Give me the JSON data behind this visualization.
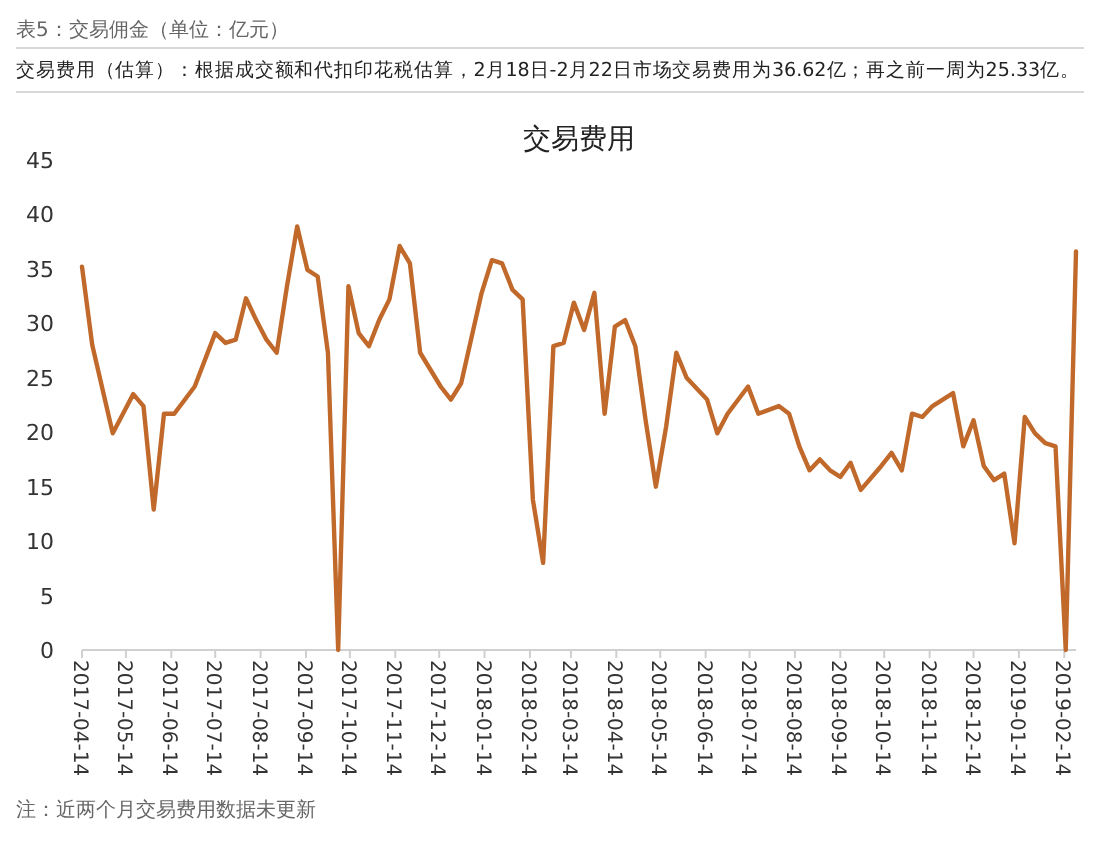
{
  "chart_data": {
    "type": "line",
    "title": "交易费用",
    "annotations": [
      "表5：交易佣金（单位：亿元）",
      "交易费用（估算）：根据成交额和代扣印花税估算，2月18日-2月22日市场交易费用为36.62亿；再之前一周为25.33亿。",
      "注：近两个月交易费用数据未更新"
    ],
    "x": [
      "2017-04-14",
      "2017-04-21",
      "2017-05-05",
      "2017-05-12",
      "2017-05-19",
      "2017-05-26",
      "2017-06-02",
      "2017-06-09",
      "2017-06-16",
      "2017-06-30",
      "2017-07-14",
      "2017-07-21",
      "2017-07-28",
      "2017-08-04",
      "2017-08-11",
      "2017-08-18",
      "2017-08-25",
      "2017-09-01",
      "2017-09-08",
      "2017-09-15",
      "2017-09-22",
      "2017-09-29",
      "2017-10-06",
      "2017-10-13",
      "2017-10-20",
      "2017-10-27",
      "2017-11-03",
      "2017-11-10",
      "2017-11-17",
      "2017-11-24",
      "2017-12-01",
      "2017-12-15",
      "2017-12-22",
      "2017-12-29",
      "2018-01-12",
      "2018-01-19",
      "2018-01-26",
      "2018-02-02",
      "2018-02-09",
      "2018-02-16",
      "2018-02-23",
      "2018-03-02",
      "2018-03-09",
      "2018-03-16",
      "2018-03-23",
      "2018-03-30",
      "2018-04-06",
      "2018-04-13",
      "2018-04-20",
      "2018-04-27",
      "2018-05-04",
      "2018-05-11",
      "2018-05-18",
      "2018-05-25",
      "2018-06-01",
      "2018-06-15",
      "2018-06-22",
      "2018-06-29",
      "2018-07-13",
      "2018-07-20",
      "2018-08-03",
      "2018-08-10",
      "2018-08-17",
      "2018-08-24",
      "2018-08-31",
      "2018-09-07",
      "2018-09-14",
      "2018-09-21",
      "2018-09-28",
      "2018-10-12",
      "2018-10-19",
      "2018-10-26",
      "2018-11-02",
      "2018-11-09",
      "2018-11-16",
      "2018-11-30",
      "2018-12-07",
      "2018-12-14",
      "2018-12-21",
      "2018-12-28",
      "2019-01-04",
      "2019-01-11",
      "2019-01-18",
      "2019-01-25",
      "2019-02-01",
      "2019-02-08",
      "2019-02-15",
      "2019-02-22"
    ],
    "series": [
      {
        "color": "#c0692b",
        "values": [
          35.2,
          28,
          19.9,
          21.7,
          23.5,
          22.4,
          12.9,
          21.7,
          21.7,
          24.2,
          29.1,
          28.2,
          28.5,
          32.3,
          30.3,
          28.5,
          27.3,
          33.4,
          38.9,
          34.9,
          34.3,
          27.3,
          0,
          33.4,
          29.1,
          27.9,
          30.3,
          32.2,
          37.1,
          35.5,
          27.3,
          24.2,
          23,
          24.5,
          32.8,
          35.8,
          35.5,
          33.1,
          32.2,
          13.8,
          8,
          27.9,
          28.2,
          31.9,
          29.4,
          32.8,
          21.7,
          29.7,
          30.3,
          27.9,
          21.1,
          15,
          20.5,
          27.3,
          25,
          23,
          19.9,
          21.7,
          24.2,
          21.7,
          22.4,
          21.7,
          18.7,
          16.5,
          17.5,
          16.5,
          15.9,
          17.2,
          14.7,
          16.9,
          18.1,
          16.5,
          21.7,
          21.4,
          22.4,
          23.6,
          18.7,
          21.1,
          16.9,
          15.6,
          16.2,
          9.8,
          21.4,
          19.9,
          19,
          18.7,
          0,
          36.6
        ]
      }
    ],
    "xlim": [
      "2017-04-14",
      "2019-02-22"
    ],
    "xticks": [
      {
        "value": "2017-04-14",
        "label": "2017-04-14"
      },
      {
        "value": "2017-05-14",
        "label": "2017-05-14"
      },
      {
        "value": "2017-06-14",
        "label": "2017-06-14"
      },
      {
        "value": "2017-07-14",
        "label": "2017-07-14"
      },
      {
        "value": "2017-08-14",
        "label": "2017-08-14"
      },
      {
        "value": "2017-09-14",
        "label": "2017-09-14"
      },
      {
        "value": "2017-10-14",
        "label": "2017-10-14"
      },
      {
        "value": "2017-11-14",
        "label": "2017-11-14"
      },
      {
        "value": "2017-12-14",
        "label": "2017-12-14"
      },
      {
        "value": "2018-01-14",
        "label": "2018-01-14"
      },
      {
        "value": "2018-02-14",
        "label": "2018-02-14"
      },
      {
        "value": "2018-03-14",
        "label": "2018-03-14"
      },
      {
        "value": "2018-04-14",
        "label": "2018-04-14"
      },
      {
        "value": "2018-05-14",
        "label": "2018-05-14"
      },
      {
        "value": "2018-06-14",
        "label": "2018-06-14"
      },
      {
        "value": "2018-07-14",
        "label": "2018-07-14"
      },
      {
        "value": "2018-08-14",
        "label": "2018-08-14"
      },
      {
        "value": "2018-09-14",
        "label": "2018-09-14"
      },
      {
        "value": "2018-10-14",
        "label": "2018-10-14"
      },
      {
        "value": "2018-11-14",
        "label": "2018-11-14"
      },
      {
        "value": "2018-12-14",
        "label": "2018-12-14"
      },
      {
        "value": "2019-01-14",
        "label": "2019-01-14"
      },
      {
        "value": "2019-02-14",
        "label": "2019-02-14"
      }
    ],
    "ylim": [
      0,
      45
    ],
    "yticks": [
      0,
      5,
      10,
      15,
      20,
      25,
      30,
      35,
      40,
      45
    ],
    "grid": false,
    "marker": "none",
    "line_style": "solid"
  }
}
